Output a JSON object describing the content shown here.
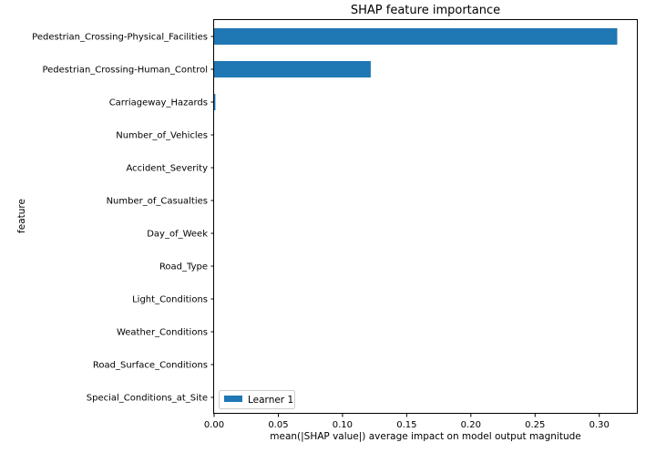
{
  "chart_data": {
    "type": "bar",
    "orientation": "horizontal",
    "title": "SHAP feature importance",
    "xlabel": "mean(|SHAP value|) average impact on model output magnitude",
    "ylabel": "feature",
    "xlim": [
      0,
      0.33
    ],
    "xticks": [
      0.0,
      0.05,
      0.1,
      0.15,
      0.2,
      0.25,
      0.3
    ],
    "xtick_labels": [
      "0.00",
      "0.05",
      "0.10",
      "0.15",
      "0.20",
      "0.25",
      "0.30"
    ],
    "categories": [
      "Pedestrian_Crossing-Physical_Facilities",
      "Pedestrian_Crossing-Human_Control",
      "Carriageway_Hazards",
      "Number_of_Vehicles",
      "Accident_Severity",
      "Number_of_Casualties",
      "Day_of_Week",
      "Road_Type",
      "Light_Conditions",
      "Weather_Conditions",
      "Road_Surface_Conditions",
      "Special_Conditions_at_Site"
    ],
    "series": [
      {
        "name": "Learner 1",
        "color": "#1f77b4",
        "values": [
          0.314,
          0.122,
          0.001,
          0,
          0,
          0,
          0,
          0,
          0,
          0,
          0,
          0
        ]
      }
    ],
    "legend_position": "lower-left",
    "grid": false
  }
}
